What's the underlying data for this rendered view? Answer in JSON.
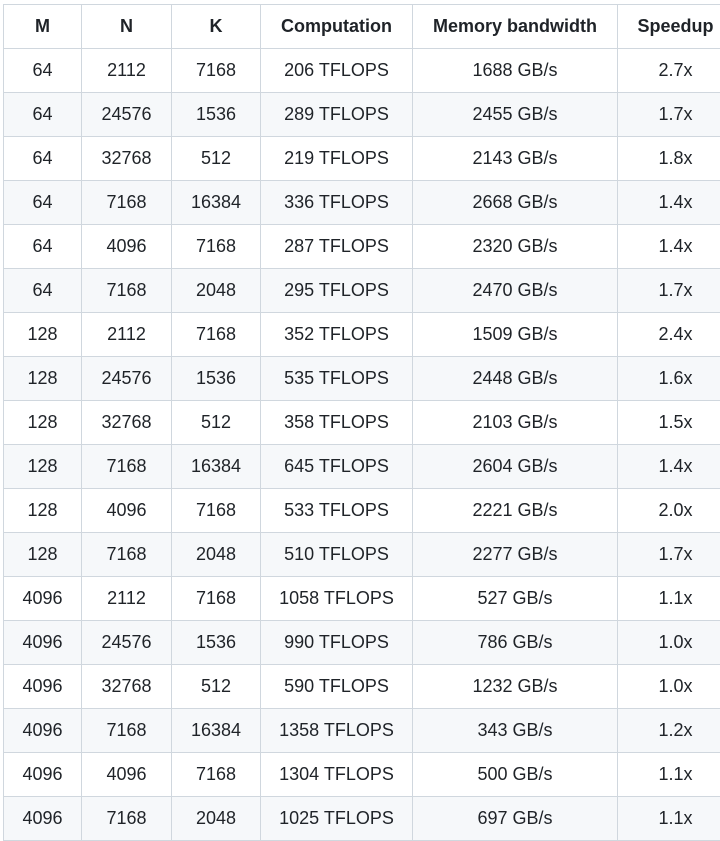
{
  "table": {
    "columns": [
      "M",
      "N",
      "K",
      "Computation",
      "Memory bandwidth",
      "Speedup"
    ],
    "rows": [
      [
        "64",
        "2112",
        "7168",
        "206 TFLOPS",
        "1688 GB/s",
        "2.7x"
      ],
      [
        "64",
        "24576",
        "1536",
        "289 TFLOPS",
        "2455 GB/s",
        "1.7x"
      ],
      [
        "64",
        "32768",
        "512",
        "219 TFLOPS",
        "2143 GB/s",
        "1.8x"
      ],
      [
        "64",
        "7168",
        "16384",
        "336 TFLOPS",
        "2668 GB/s",
        "1.4x"
      ],
      [
        "64",
        "4096",
        "7168",
        "287 TFLOPS",
        "2320 GB/s",
        "1.4x"
      ],
      [
        "64",
        "7168",
        "2048",
        "295 TFLOPS",
        "2470 GB/s",
        "1.7x"
      ],
      [
        "128",
        "2112",
        "7168",
        "352 TFLOPS",
        "1509 GB/s",
        "2.4x"
      ],
      [
        "128",
        "24576",
        "1536",
        "535 TFLOPS",
        "2448 GB/s",
        "1.6x"
      ],
      [
        "128",
        "32768",
        "512",
        "358 TFLOPS",
        "2103 GB/s",
        "1.5x"
      ],
      [
        "128",
        "7168",
        "16384",
        "645 TFLOPS",
        "2604 GB/s",
        "1.4x"
      ],
      [
        "128",
        "4096",
        "7168",
        "533 TFLOPS",
        "2221 GB/s",
        "2.0x"
      ],
      [
        "128",
        "7168",
        "2048",
        "510 TFLOPS",
        "2277 GB/s",
        "1.7x"
      ],
      [
        "4096",
        "2112",
        "7168",
        "1058 TFLOPS",
        "527 GB/s",
        "1.1x"
      ],
      [
        "4096",
        "24576",
        "1536",
        "990 TFLOPS",
        "786 GB/s",
        "1.0x"
      ],
      [
        "4096",
        "32768",
        "512",
        "590 TFLOPS",
        "1232 GB/s",
        "1.0x"
      ],
      [
        "4096",
        "7168",
        "16384",
        "1358 TFLOPS",
        "343 GB/s",
        "1.2x"
      ],
      [
        "4096",
        "4096",
        "7168",
        "1304 TFLOPS",
        "500 GB/s",
        "1.1x"
      ],
      [
        "4096",
        "7168",
        "2048",
        "1025 TFLOPS",
        "697 GB/s",
        "1.1x"
      ]
    ]
  }
}
